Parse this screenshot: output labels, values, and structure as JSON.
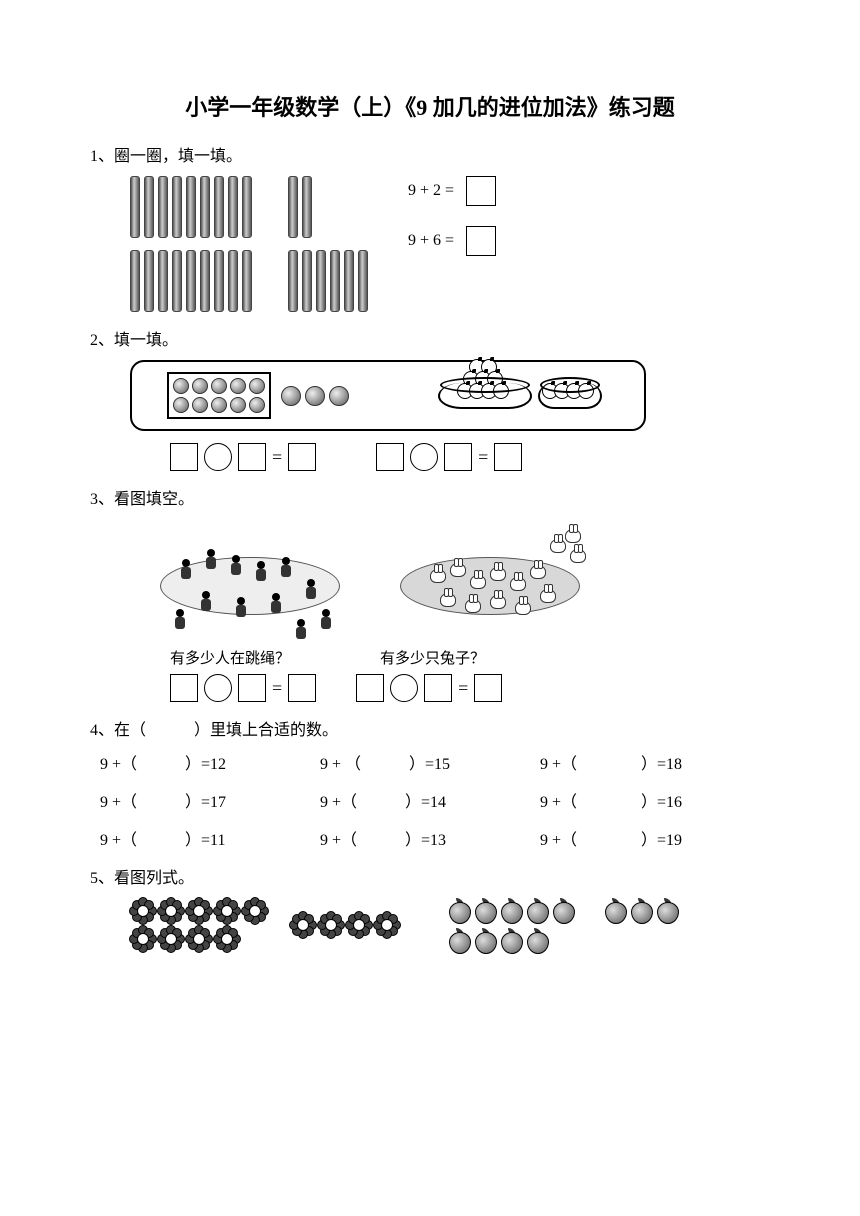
{
  "title": "小学一年级数学（上）《9 加几的进位加法》练习题",
  "problems": {
    "p1": {
      "label": "1、圈一圈，填一填。",
      "sticks": {
        "row1": [
          9,
          2
        ],
        "row2": [
          9,
          6
        ]
      },
      "equations": [
        "9 + 2 =",
        "9 + 6 ="
      ]
    },
    "p2": {
      "label": "2、填一填。",
      "eggs_in_tray": 10,
      "eggs_outside": 3,
      "apples_big_plate": 9,
      "apples_small_plate": 4,
      "eq_symbol": "="
    },
    "p3": {
      "label": "3、看图填空。",
      "caption_left": "有多少人在跳绳？",
      "caption_right": "有多少只兔子？",
      "kids_count": 12,
      "rabbits_count": 14,
      "eq_symbol": "="
    },
    "p4": {
      "label": "4、在（　　　）里填上合适的数。",
      "rows": [
        [
          "9 +（　　　）=12",
          "9 + （　　　）=15",
          "9 +（　　　　）=18"
        ],
        [
          "9 +（　　　）=17",
          "9 +（　　　）=14",
          "9 +（　　　　）=16"
        ],
        [
          "9 +（　　　）=11",
          "9 +（　　　）=13",
          "9 +（　　　　）=19"
        ]
      ]
    },
    "p5": {
      "label": "5、看图列式。",
      "flowers": {
        "group1": 9,
        "group2": 4
      },
      "peaches": {
        "group1": 9,
        "group2": 3
      }
    }
  }
}
